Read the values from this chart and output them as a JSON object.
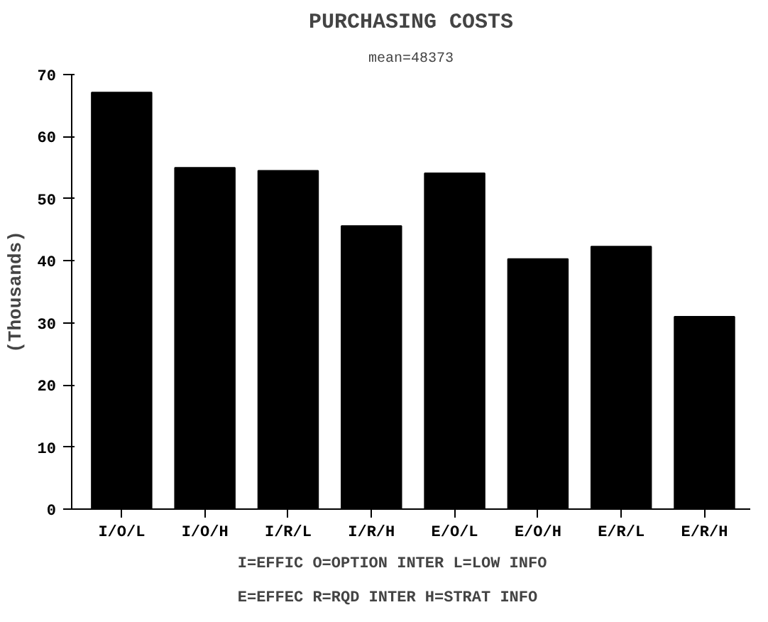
{
  "chart_data": {
    "type": "bar",
    "title": "PURCHASING COSTS",
    "subtitle": "mean=48373",
    "ylabel": "(Thousands)",
    "categories": [
      "I/O/L",
      "I/O/H",
      "I/R/L",
      "I/R/H",
      "E/O/L",
      "E/O/H",
      "E/R/L",
      "E/R/H"
    ],
    "values": [
      67.1,
      55.0,
      54.5,
      45.6,
      54.1,
      40.3,
      42.3,
      31.0
    ],
    "color": "#000000",
    "ylim": [
      0,
      70
    ],
    "yticks": [
      0,
      10,
      20,
      30,
      40,
      50,
      60,
      70
    ],
    "grid": false,
    "annotations": [
      "I=EFFIC   O=OPTION INTER   L=LOW INFO",
      "E=EFFEC   R=RQD INTER    H=STRAT INFO"
    ]
  }
}
